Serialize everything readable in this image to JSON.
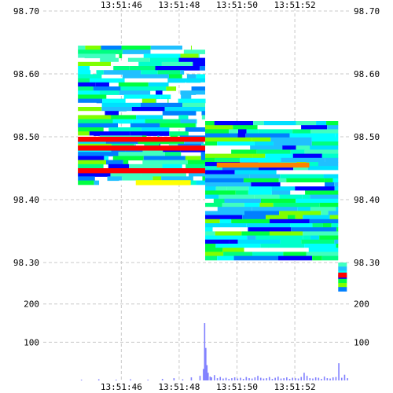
{
  "chart_data": [
    {
      "type": "heatmap",
      "title": "",
      "xlabel": "",
      "ylabel": "",
      "x_ticks": [
        "13:51:46",
        "13:51:48",
        "13:51:50",
        "13:51:52"
      ],
      "x_tick_seconds": [
        46,
        48,
        50,
        52
      ],
      "xlim_seconds": [
        43.3,
        53.9
      ],
      "ylim": [
        98.27,
        98.7
      ],
      "y_ticks": [
        98.7,
        98.6,
        98.5,
        98.4,
        98.3
      ],
      "y_tick_labels": [
        "98.70",
        "98.60",
        "98.50",
        "98.40",
        "98.30"
      ],
      "grid": true,
      "colorscale": [
        "#0000ff",
        "#00ffff",
        "#00ff80",
        "#80ff00",
        "#ffff00",
        "#ff8000",
        "#ff0000"
      ],
      "segments": [
        {
          "x": [
            44.5,
            48.9
          ],
          "price_range": [
            98.43,
            98.645
          ],
          "note_price_high_rows": [
            98.49,
            98.455
          ]
        },
        {
          "x": [
            48.9,
            53.5
          ],
          "price_range": [
            98.305,
            98.525
          ]
        },
        {
          "x": [
            53.5,
            53.8
          ],
          "price_range": [
            98.26,
            98.3
          ]
        }
      ],
      "hot_rows": [
        {
          "price": 98.496,
          "x": [
            44.5,
            48.9
          ],
          "color": "#ff0000"
        },
        {
          "price": 98.482,
          "x": [
            44.5,
            48.9
          ],
          "color": "#ff0000"
        },
        {
          "price": 98.446,
          "x": [
            44.5,
            48.9
          ],
          "color": "#ff0000"
        },
        {
          "price": 98.427,
          "x": [
            46.5,
            48.4
          ],
          "color": "#ffff00"
        },
        {
          "price": 98.455,
          "x": [
            49.3,
            52.5
          ],
          "color": "#ff8000"
        },
        {
          "price": 98.28,
          "x": [
            53.5,
            53.8
          ],
          "color": "#ff0000"
        }
      ]
    },
    {
      "type": "bar",
      "title": "",
      "xlabel": "",
      "ylabel": "",
      "x_ticks": [
        "13:51:46",
        "13:51:48",
        "13:51:50",
        "13:51:52"
      ],
      "ylim": [
        0,
        255
      ],
      "y_ticks": [
        200,
        100
      ],
      "y_tick_labels": [
        "200",
        "100"
      ],
      "grid": true,
      "bar_color": "#8080ff",
      "x_seconds": [
        44.6,
        45.2,
        45.8,
        46.3,
        46.9,
        47.4,
        47.8,
        48.1,
        48.4,
        48.7,
        48.82,
        48.86,
        48.9,
        48.94,
        48.98,
        49.05,
        49.1,
        49.2,
        49.3,
        49.4,
        49.5,
        49.6,
        49.7,
        49.8,
        49.9,
        50.0,
        50.1,
        50.2,
        50.3,
        50.4,
        50.5,
        50.6,
        50.7,
        50.8,
        50.9,
        51.0,
        51.1,
        51.2,
        51.3,
        51.4,
        51.5,
        51.6,
        51.7,
        51.8,
        51.9,
        52.0,
        52.1,
        52.2,
        52.3,
        52.4,
        52.5,
        52.6,
        52.7,
        52.8,
        52.9,
        53.0,
        53.1,
        53.2,
        53.3,
        53.4,
        53.5,
        53.6,
        53.7,
        53.8
      ],
      "values": [
        2,
        3,
        2,
        3,
        2,
        4,
        6,
        3,
        8,
        12,
        30,
        150,
        85,
        40,
        20,
        10,
        8,
        14,
        6,
        9,
        5,
        7,
        4,
        6,
        8,
        5,
        7,
        4,
        9,
        6,
        5,
        8,
        12,
        7,
        5,
        6,
        9,
        4,
        7,
        10,
        5,
        6,
        8,
        4,
        7,
        6,
        5,
        9,
        20,
        12,
        6,
        5,
        8,
        7,
        4,
        10,
        6,
        5,
        8,
        9,
        45,
        7,
        15,
        6
      ]
    }
  ]
}
